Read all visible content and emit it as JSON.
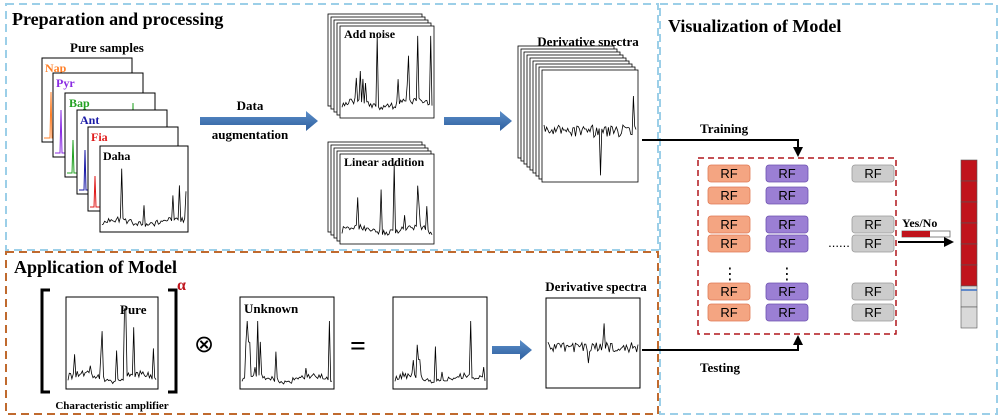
{
  "sections": {
    "prep": {
      "title": "Preparation and processing"
    },
    "viz": {
      "title": "Visualization of Model"
    },
    "app": {
      "title": "Application of Model"
    }
  },
  "prep": {
    "pure_samples_label": "Pure samples",
    "samples": [
      {
        "name": "Nap",
        "color": "#ff7f27"
      },
      {
        "name": "Pyr",
        "color": "#8a2be2"
      },
      {
        "name": "Bap",
        "color": "#22a122"
      },
      {
        "name": "Ant",
        "color": "#1a1aa6"
      },
      {
        "name": "Fia",
        "color": "#e01b1b"
      },
      {
        "name": "Daha",
        "color": "#000000"
      }
    ],
    "augmentation_line1": "Data",
    "augmentation_line2": "augmentation",
    "add_noise_label": "Add noise",
    "linear_addition_label": "Linear addition",
    "derivative_label": "Derivative spectra"
  },
  "model": {
    "training_label": "Training",
    "testing_label": "Testing",
    "rf_label": "RF",
    "ellipsis_h": "......",
    "ellipsis_v": "⋮",
    "result_label": "Yes/No",
    "colors": {
      "col1": "#f4a582",
      "col2": "#9b7fd4",
      "col3": "#cccccc",
      "accent": "#c0141c"
    }
  },
  "application": {
    "pure_label": "Pure",
    "alpha_symbol": "α",
    "characteristic_label": "Characteristic amplifier",
    "operator_multiply": "⊗",
    "operator_equals": "=",
    "unknown_label": "Unknown",
    "derivative_label": "Derivative spectra"
  }
}
